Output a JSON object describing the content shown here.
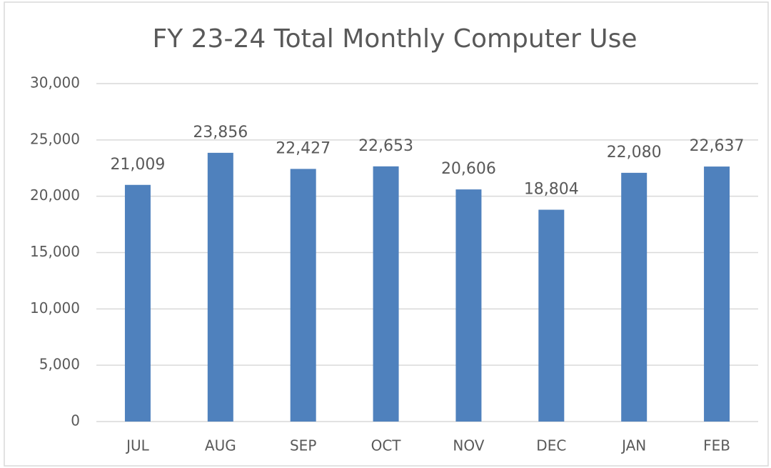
{
  "chart_data": {
    "type": "bar",
    "title": "FY 23-24 Total Monthly Computer Use",
    "categories": [
      "JUL",
      "AUG",
      "SEP",
      "OCT",
      "NOV",
      "DEC",
      "JAN",
      "FEB"
    ],
    "values": [
      21009,
      23856,
      22427,
      22653,
      20606,
      18804,
      22080,
      22637
    ],
    "value_labels": [
      "21,009",
      "23,856",
      "22,427",
      "22,653",
      "20,606",
      "18,804",
      "22,080",
      "22,637"
    ],
    "color": "#4f81bd",
    "ylim": [
      0,
      30000
    ],
    "yticks": [
      0,
      {
        "value": 5000,
        "label": "5,000"
      },
      {
        "value": 10000,
        "label": "10,000"
      },
      {
        "value": 15000,
        "label": "15,000"
      },
      {
        "value": 20000,
        "label": "20,000"
      },
      {
        "value": 25000,
        "label": "25,000"
      },
      {
        "value": 30000,
        "label": "30,000"
      }
    ],
    "grid": true
  }
}
